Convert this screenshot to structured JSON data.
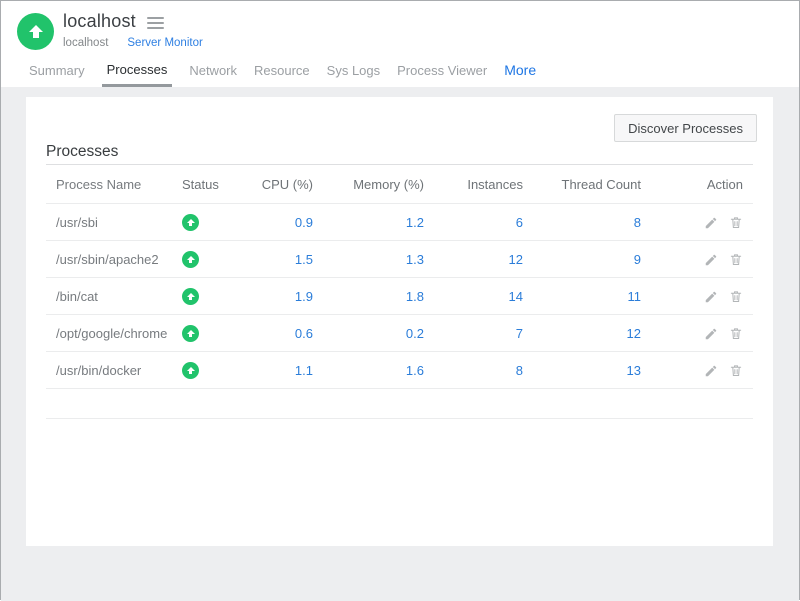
{
  "header": {
    "title": "localhost",
    "breadcrumb": {
      "parent": "localhost",
      "current": "Server Monitor"
    }
  },
  "tabs": [
    {
      "label": "Summary",
      "active": false
    },
    {
      "label": "Processes",
      "active": true
    },
    {
      "label": "Network",
      "active": false
    },
    {
      "label": "Resource",
      "active": false
    },
    {
      "label": "Sys Logs",
      "active": false
    },
    {
      "label": "Process Viewer",
      "active": false
    },
    {
      "label": "More",
      "active": false
    }
  ],
  "panel": {
    "discover_button_label": "Discover Processes",
    "section_title": "Processes",
    "table": {
      "columns": [
        "Process Name",
        "Status",
        "CPU (%)",
        "Memory (%)",
        "Instances",
        "Thread Count",
        "Action"
      ],
      "rows": [
        {
          "name": "/usr/sbi",
          "status": "up",
          "cpu": "0.9",
          "memory": "1.2",
          "instances": "6",
          "threads": "8"
        },
        {
          "name": "/usr/sbin/apache2",
          "status": "up",
          "cpu": "1.5",
          "memory": "1.3",
          "instances": "12",
          "threads": "9"
        },
        {
          "name": "/bin/cat",
          "status": "up",
          "cpu": "1.9",
          "memory": "1.8",
          "instances": "14",
          "threads": "11"
        },
        {
          "name": "/opt/google/chrome",
          "status": "up",
          "cpu": "0.6",
          "memory": "0.2",
          "instances": "7",
          "threads": "12"
        },
        {
          "name": "/usr/bin/docker",
          "status": "up",
          "cpu": "1.1",
          "memory": "1.6",
          "instances": "8",
          "threads": "13"
        }
      ]
    }
  },
  "colors": {
    "status_up_green": "#21c36b",
    "link_blue": "#2b7dd9",
    "breadcrumb_link_blue": "#2e7fe2",
    "more_tab_blue": "#1e76e4",
    "content_background": "#edeef0",
    "active_tab_underline": "#94999d"
  }
}
